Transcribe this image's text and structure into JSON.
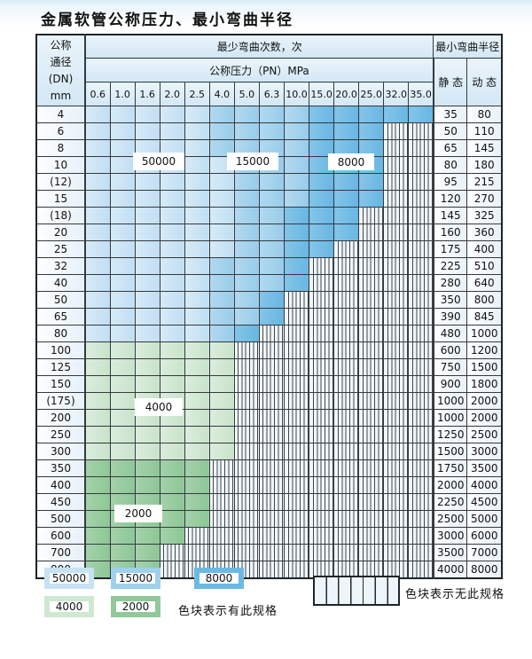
{
  "title": "金属软管公称压力、最小弯曲半径",
  "table": {
    "corner_header": {
      "line1": "公称",
      "line2": "通径",
      "line3": "(DN)",
      "line4": "mm"
    },
    "bend_cycles_header": "最少弯曲次数，次",
    "pressure_header": "公称压力（PN）MPa",
    "radius_header": "最小弯曲半径",
    "static_header": "静 态",
    "dynamic_header": "动 态",
    "pressure_columns": [
      "0.6",
      "1.0",
      "1.6",
      "2.0",
      "2.5",
      "4.0",
      "5.0",
      "6.3",
      "10.0",
      "15.0",
      "20.0",
      "25.0",
      "32.0",
      "35.0"
    ],
    "band_legend_meaning": {
      "blue1": "50000",
      "blue2": "15000",
      "blue3": "8000",
      "green1": "4000",
      "green2": "2000",
      "stripe": "无此规格"
    },
    "rows": [
      {
        "dn": "4",
        "bands": {
          "blue1": 5,
          "blue2": 4,
          "blue3": 5
        },
        "static": "35",
        "dynamic": "80"
      },
      {
        "dn": "6",
        "bands": {
          "blue1": 5,
          "blue2": 4,
          "blue3": 3
        },
        "static": "50",
        "dynamic": "110"
      },
      {
        "dn": "8",
        "bands": {
          "blue1": 5,
          "blue2": 4,
          "blue3": 3
        },
        "static": "65",
        "dynamic": "145"
      },
      {
        "dn": "10",
        "bands": {
          "blue1": 6,
          "blue2": 3,
          "blue3": 3
        },
        "static": "80",
        "dynamic": "180"
      },
      {
        "dn": "(12)",
        "bands": {
          "blue1": 6,
          "blue2": 3,
          "blue3": 3
        },
        "static": "95",
        "dynamic": "215"
      },
      {
        "dn": "15",
        "bands": {
          "blue1": 6,
          "blue2": 3,
          "blue3": 3
        },
        "static": "120",
        "dynamic": "270"
      },
      {
        "dn": "(18)",
        "bands": {
          "blue1": 6,
          "blue2": 2,
          "blue3": 3
        },
        "static": "145",
        "dynamic": "325"
      },
      {
        "dn": "20",
        "bands": {
          "blue1": 6,
          "blue2": 2,
          "blue3": 3
        },
        "static": "160",
        "dynamic": "360"
      },
      {
        "dn": "25",
        "bands": {
          "blue1": 6,
          "blue2": 2,
          "blue3": 2
        },
        "static": "175",
        "dynamic": "400"
      },
      {
        "dn": "32",
        "bands": {
          "blue1": 5,
          "blue2": 3,
          "blue3": 1
        },
        "static": "225",
        "dynamic": "510"
      },
      {
        "dn": "40",
        "bands": {
          "blue1": 5,
          "blue2": 3,
          "blue3": 1
        },
        "static": "280",
        "dynamic": "640"
      },
      {
        "dn": "50",
        "bands": {
          "blue1": 5,
          "blue2": 2,
          "blue3": 1
        },
        "static": "350",
        "dynamic": "800"
      },
      {
        "dn": "65",
        "bands": {
          "blue1": 5,
          "blue2": 2,
          "blue3": 1
        },
        "static": "390",
        "dynamic": "845"
      },
      {
        "dn": "80",
        "bands": {
          "blue1": 5,
          "blue2": 1,
          "blue3": 1
        },
        "static": "480",
        "dynamic": "1000"
      },
      {
        "dn": "100",
        "bands": {
          "green1": 6
        },
        "static": "600",
        "dynamic": "1200"
      },
      {
        "dn": "125",
        "bands": {
          "green1": 6
        },
        "static": "750",
        "dynamic": "1500"
      },
      {
        "dn": "150",
        "bands": {
          "green1": 6
        },
        "static": "900",
        "dynamic": "1800"
      },
      {
        "dn": "(175)",
        "bands": {
          "green1": 6
        },
        "static": "1000",
        "dynamic": "2000"
      },
      {
        "dn": "200",
        "bands": {
          "green1": 6
        },
        "static": "1000",
        "dynamic": "2000"
      },
      {
        "dn": "250",
        "bands": {
          "green1": 6
        },
        "static": "1250",
        "dynamic": "2500"
      },
      {
        "dn": "300",
        "bands": {
          "green1": 6
        },
        "static": "1500",
        "dynamic": "3000"
      },
      {
        "dn": "350",
        "bands": {
          "green2": 5
        },
        "static": "1750",
        "dynamic": "3500"
      },
      {
        "dn": "400",
        "bands": {
          "green2": 5
        },
        "static": "2000",
        "dynamic": "4000"
      },
      {
        "dn": "450",
        "bands": {
          "green2": 5
        },
        "static": "2250",
        "dynamic": "4500"
      },
      {
        "dn": "500",
        "bands": {
          "green2": 5
        },
        "static": "2500",
        "dynamic": "5000"
      },
      {
        "dn": "600",
        "bands": {
          "green2": 4
        },
        "static": "3000",
        "dynamic": "6000"
      },
      {
        "dn": "700",
        "bands": {
          "green2": 3
        },
        "static": "3500",
        "dynamic": "7000"
      },
      {
        "dn": "800",
        "bands": {
          "green2": 3
        },
        "static": "4000",
        "dynamic": "8000"
      }
    ]
  },
  "overlay_labels": {
    "l50000": "50000",
    "l15000": "15000",
    "l8000": "8000",
    "l4000": "4000",
    "l2000": "2000"
  },
  "legend": {
    "swatches": [
      {
        "label": "50000",
        "band": "blue1"
      },
      {
        "label": "15000",
        "band": "blue2"
      },
      {
        "label": "8000",
        "band": "blue3"
      },
      {
        "label": "4000",
        "band": "green1"
      },
      {
        "label": "2000",
        "band": "green2"
      }
    ],
    "available_note": "色块表示有此规格",
    "unavailable_note": "色块表示无此规格"
  },
  "colors": {
    "blue1": "#c6e2f4",
    "blue2": "#9fd0ec",
    "blue3": "#6db9e3",
    "green1": "#cfe8d1",
    "green2": "#92c89a",
    "grid": "#343a3f"
  }
}
